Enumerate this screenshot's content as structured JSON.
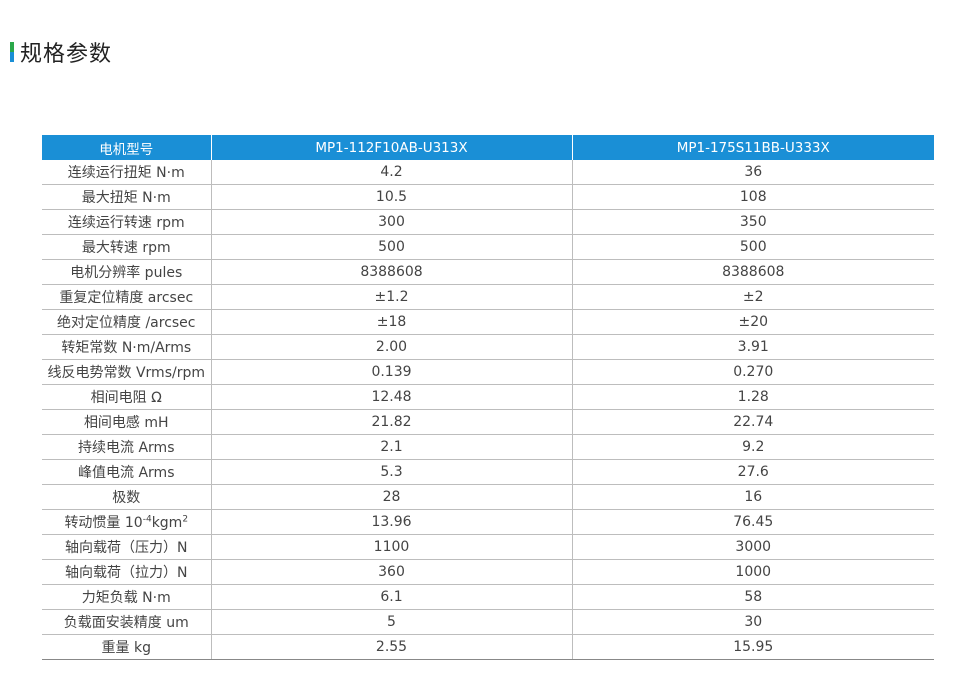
{
  "section": {
    "title": "规格参数",
    "accent_colors": [
      "#2aa84a",
      "#1a8fd6"
    ]
  },
  "table": {
    "header_color": "#1a8fd6",
    "headers": [
      "电机型号",
      "MP1-112F10AB-U313X",
      "MP1-175S11BB-U333X"
    ],
    "rows": [
      {
        "label": "连续运行扭矩 N·m",
        "v1": "4.2",
        "v2": "36"
      },
      {
        "label": "最大扭矩 N·m",
        "v1": "10.5",
        "v2": "108"
      },
      {
        "label": "连续运行转速 rpm",
        "v1": "300",
        "v2": "350"
      },
      {
        "label": "最大转速 rpm",
        "v1": "500",
        "v2": "500"
      },
      {
        "label": "电机分辨率 pules",
        "v1": "8388608",
        "v2": "8388608"
      },
      {
        "label": "重复定位精度 arcsec",
        "v1": "±1.2",
        "v2": "±2"
      },
      {
        "label": "绝对定位精度 /arcsec",
        "v1": "±18",
        "v2": "±20"
      },
      {
        "label": "转矩常数 N·m/Arms",
        "v1": "2.00",
        "v2": "3.91"
      },
      {
        "label": "线反电势常数 Vrms/rpm",
        "v1": "0.139",
        "v2": "0.270"
      },
      {
        "label": "相间电阻 Ω",
        "v1": "12.48",
        "v2": "1.28"
      },
      {
        "label": "相间电感 mH",
        "v1": "21.82",
        "v2": "22.74"
      },
      {
        "label": "持续电流 Arms",
        "v1": "2.1",
        "v2": "9.2"
      },
      {
        "label": "峰值电流 Arms",
        "v1": "5.3",
        "v2": "27.6"
      },
      {
        "label": "极数",
        "v1": "28",
        "v2": "16"
      },
      {
        "label_prefix": "转动惯量 10",
        "label_sup1": "-4",
        "label_mid": "kgm",
        "label_sup2": "2",
        "v1": "13.96",
        "v2": "76.45"
      },
      {
        "label": "轴向载荷（压力）N",
        "v1": "1100",
        "v2": "3000"
      },
      {
        "label": "轴向载荷（拉力）N",
        "v1": "360",
        "v2": "1000"
      },
      {
        "label": "力矩负载 N·m",
        "v1": "6.1",
        "v2": "58"
      },
      {
        "label": "负载面安装精度 um",
        "v1": "5",
        "v2": "30"
      },
      {
        "label": "重量 kg",
        "v1": "2.55",
        "v2": "15.95"
      }
    ]
  }
}
